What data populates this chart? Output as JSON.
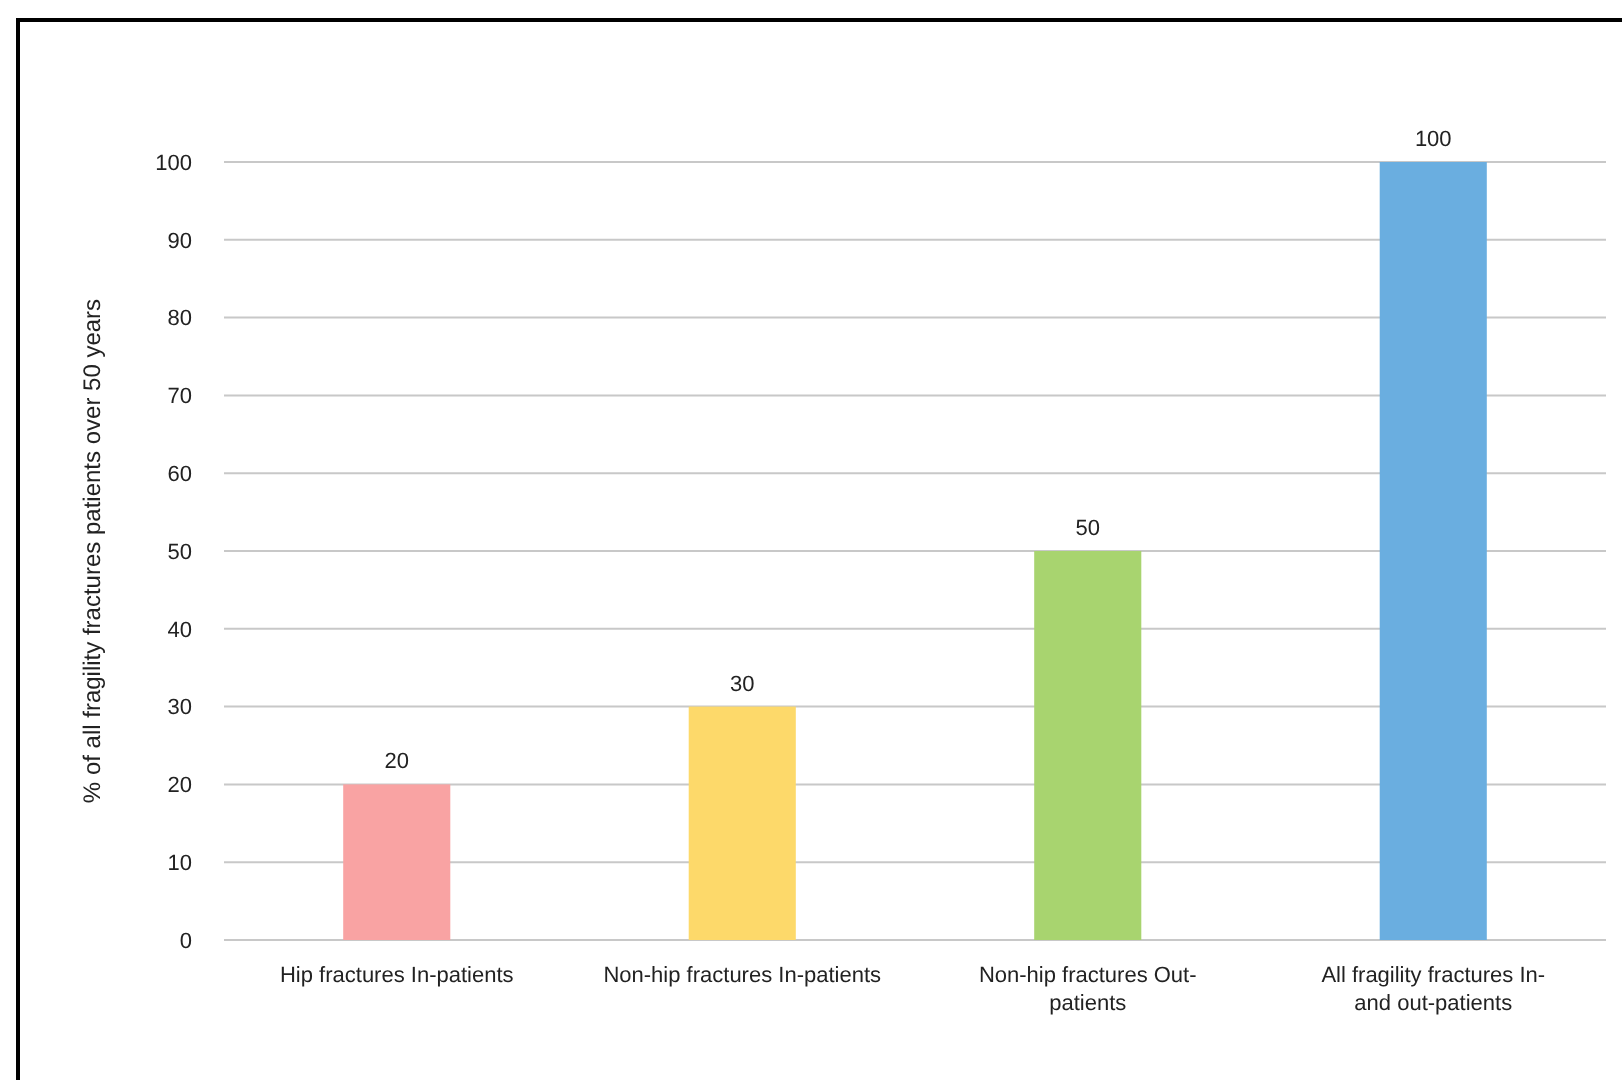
{
  "chart_data": {
    "type": "bar",
    "ylabel": "% of all fragility fractures patients over 50 years",
    "categories": [
      "Hip fractures In-patients",
      "Non-hip fractures In-patients",
      "Non-hip fractures Out-patients",
      "All fragility fractures In- and out-patients"
    ],
    "values": [
      20,
      30,
      50,
      100
    ],
    "colors": [
      "#f9a3a3",
      "#fdd96a",
      "#a8d46f",
      "#6aaee0"
    ],
    "ylim": [
      0,
      100
    ],
    "yticks": [
      0,
      10,
      20,
      30,
      40,
      50,
      60,
      70,
      80,
      90,
      100
    ],
    "grid": "y",
    "data_labels": true
  }
}
